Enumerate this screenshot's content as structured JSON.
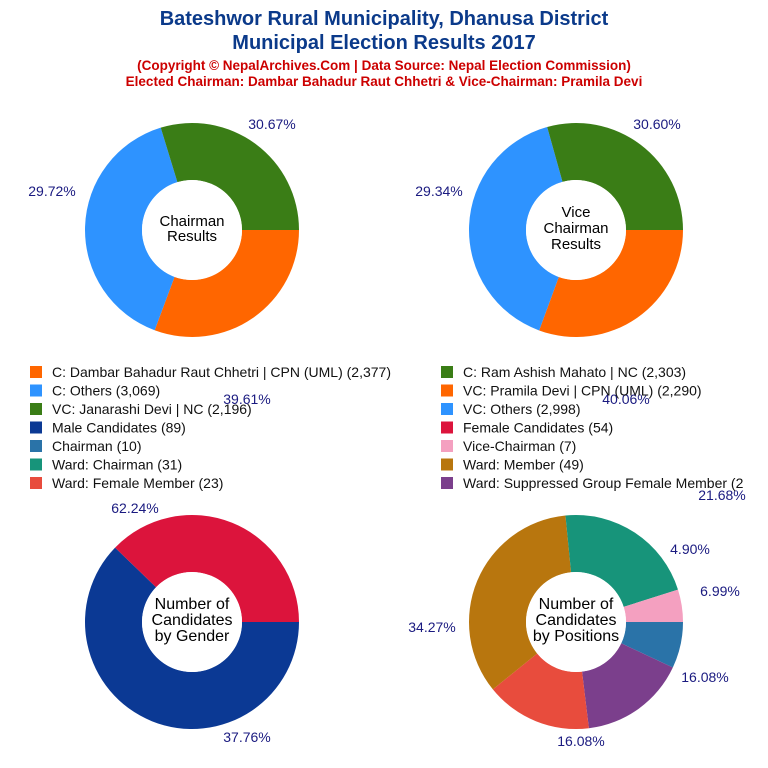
{
  "header": {
    "title_line1": "Bateshwor Rural Municipality, Dhanusa District",
    "title_line2": "Municipal Election Results 2017",
    "subtitle_line1": "(Copyright © NepalArchives.Com | Data Source: Nepal Election Commission)",
    "subtitle_line2": "Elected Chairman: Dambar Bahadur Raut Chhetri & Vice-Chairman: Pramila Devi"
  },
  "legend": [
    {
      "label": "C: Dambar Bahadur Raut Chhetri | CPN (UML) (2,377)",
      "color": "#ff6600"
    },
    {
      "label": "C: Ram Ashish Mahato | NC (2,303)",
      "color": "#3a7d16"
    },
    {
      "label": "C: Others (3,069)",
      "color": "#2e93ff"
    },
    {
      "label": "VC: Pramila Devi | CPN (UML) (2,290)",
      "color": "#ff6600"
    },
    {
      "label": "VC: Janarashi Devi | NC (2,196)",
      "color": "#3a7d16"
    },
    {
      "label": "VC: Others (2,998)",
      "color": "#2e93ff"
    },
    {
      "label": "Male Candidates (89)",
      "color": "#0b3994"
    },
    {
      "label": "Female Candidates (54)",
      "color": "#dc143c"
    },
    {
      "label": "Chairman (10)",
      "color": "#2a73a8"
    },
    {
      "label": "Vice-Chairman (7)",
      "color": "#f4a0c0"
    },
    {
      "label": "Ward: Chairman (31)",
      "color": "#17947a"
    },
    {
      "label": "Ward: Member (49)",
      "color": "#b8760e"
    },
    {
      "label": "Ward: Female Member (23)",
      "color": "#e84c3d"
    },
    {
      "label": "Ward: Suppressed Group Female Member (2",
      "color": "#7b3f8c"
    }
  ],
  "chart_data": [
    {
      "type": "pie",
      "center_text": [
        "Chairman",
        "Results"
      ],
      "slices": [
        {
          "label": "C: Dambar Bahadur Raut Chhetri | CPN (UML)",
          "value": 2377,
          "percent_label": "30.67%",
          "color": "#ff6600"
        },
        {
          "label": "C: Others",
          "value": 3069,
          "percent_label": "39.61%",
          "color": "#2e93ff"
        },
        {
          "label": "C: Ram Ashish Mahato | NC",
          "value": 2303,
          "percent_label": "29.72%",
          "color": "#3a7d16"
        }
      ]
    },
    {
      "type": "pie",
      "center_text": [
        "Vice",
        "Chairman",
        "Results"
      ],
      "slices": [
        {
          "label": "VC: Pramila Devi | CPN (UML)",
          "value": 2290,
          "percent_label": "30.60%",
          "color": "#ff6600"
        },
        {
          "label": "VC: Others",
          "value": 2998,
          "percent_label": "40.06%",
          "color": "#2e93ff"
        },
        {
          "label": "VC: Janarashi Devi | NC",
          "value": 2196,
          "percent_label": "29.34%",
          "color": "#3a7d16"
        }
      ]
    },
    {
      "type": "pie",
      "center_text": [
        "Number of",
        "Candidates",
        "by Gender"
      ],
      "slices": [
        {
          "label": "Male Candidates",
          "value": 89,
          "percent_label": "62.24%",
          "color": "#0b3994"
        },
        {
          "label": "Female Candidates",
          "value": 54,
          "percent_label": "37.76%",
          "color": "#dc143c"
        }
      ]
    },
    {
      "type": "pie",
      "center_text": [
        "Number of",
        "Candidates",
        "by Positions"
      ],
      "slices": [
        {
          "label": "Chairman",
          "value": 10,
          "percent_label": "6.99%",
          "color": "#2a73a8"
        },
        {
          "label": "Ward: Suppressed Group Female Member",
          "value": 23,
          "percent_label": "16.08%",
          "color": "#7b3f8c"
        },
        {
          "label": "Ward: Female Member",
          "value": 23,
          "percent_label": "16.08%",
          "color": "#e84c3d"
        },
        {
          "label": "Ward: Member",
          "value": 49,
          "percent_label": "34.27%",
          "color": "#b8760e"
        },
        {
          "label": "Ward: Chairman",
          "value": 31,
          "percent_label": "21.68%",
          "color": "#17947a"
        },
        {
          "label": "Vice-Chairman",
          "value": 7,
          "percent_label": "4.90%",
          "color": "#f4a0c0"
        }
      ]
    }
  ]
}
